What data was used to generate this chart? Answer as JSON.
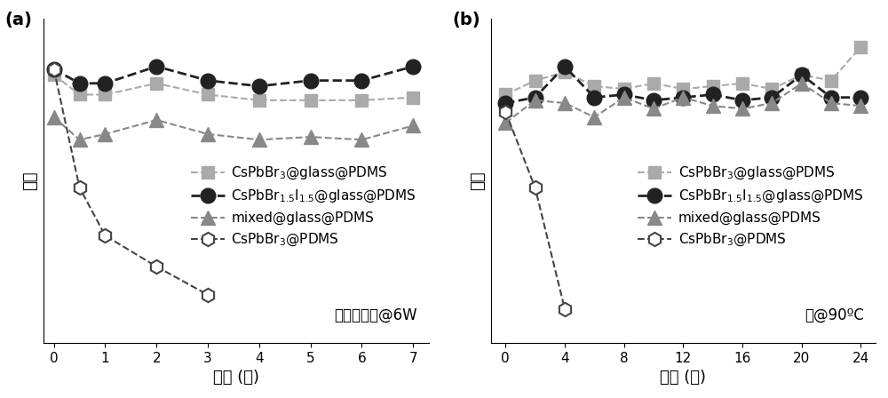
{
  "panel_a": {
    "title_label": "(a)",
    "xlabel": "时间 (天)",
    "ylabel": "强度",
    "annotation": "紫外光照射@6W",
    "xticks": [
      0,
      1,
      2,
      3,
      4,
      5,
      6,
      7
    ],
    "series": {
      "CsPbBr3_glass_PDMS": {
        "x": [
          0,
          0.5,
          1,
          2,
          3,
          4,
          5,
          6,
          7
        ],
        "y": [
          0.95,
          0.88,
          0.88,
          0.92,
          0.88,
          0.86,
          0.86,
          0.86,
          0.87
        ],
        "color": "#aaaaaa",
        "linestyle": "--",
        "marker": "s",
        "markersize": 10,
        "markerfacecolor": "#aaaaaa",
        "markeredgecolor": "#aaaaaa",
        "markeredgewidth": 1.0,
        "linewidth": 1.5,
        "label": "CsPbBr$_3$@glass@PDMS"
      },
      "CsPbBr15I15_glass_PDMS": {
        "x": [
          0,
          0.5,
          1,
          2,
          3,
          4,
          5,
          6,
          7
        ],
        "y": [
          0.97,
          0.92,
          0.92,
          0.98,
          0.93,
          0.91,
          0.93,
          0.93,
          0.98
        ],
        "color": "#222222",
        "linestyle": "--",
        "marker": "o",
        "markersize": 12,
        "markerfacecolor": "#222222",
        "markeredgecolor": "#222222",
        "markeredgewidth": 1.0,
        "linewidth": 2.0,
        "label": "CsPbBr$_{1.5}$I$_{1.5}$@glass@PDMS"
      },
      "mixed_glass_PDMS": {
        "x": [
          0,
          0.5,
          1,
          2,
          3,
          4,
          5,
          6,
          7
        ],
        "y": [
          0.8,
          0.72,
          0.74,
          0.79,
          0.74,
          0.72,
          0.73,
          0.72,
          0.77
        ],
        "color": "#888888",
        "linestyle": "--",
        "marker": "^",
        "markersize": 11,
        "markerfacecolor": "#888888",
        "markeredgecolor": "#888888",
        "markeredgewidth": 1.0,
        "linewidth": 1.5,
        "label": "mixed@glass@PDMS"
      },
      "CsPbBr3_PDMS": {
        "x": [
          0,
          0.5,
          1,
          2,
          3
        ],
        "y": [
          0.97,
          0.55,
          0.38,
          0.27,
          0.17
        ],
        "color": "#444444",
        "linestyle": "--",
        "marker": "h",
        "markersize": 11,
        "markerfacecolor": "white",
        "markeredgecolor": "#444444",
        "markeredgewidth": 1.5,
        "linewidth": 1.5,
        "label": "CsPbBr$_3$@PDMS"
      }
    },
    "ylim": [
      0,
      1.15
    ],
    "xlim": [
      -0.2,
      7.3
    ]
  },
  "panel_b": {
    "title_label": "(b)",
    "xlabel": "时间 (时)",
    "ylabel": "强度",
    "annotation": "水@90ºC",
    "xticks": [
      0,
      4,
      8,
      12,
      16,
      20,
      24
    ],
    "series": {
      "CsPbBr3_glass_PDMS": {
        "x": [
          0,
          2,
          4,
          6,
          8,
          10,
          12,
          14,
          16,
          18,
          20,
          22,
          24
        ],
        "y": [
          0.88,
          0.93,
          0.96,
          0.91,
          0.9,
          0.92,
          0.9,
          0.91,
          0.92,
          0.9,
          0.95,
          0.93,
          1.05
        ],
        "color": "#aaaaaa",
        "linestyle": "--",
        "marker": "s",
        "markersize": 10,
        "markerfacecolor": "#aaaaaa",
        "markeredgecolor": "#aaaaaa",
        "markeredgewidth": 1.0,
        "linewidth": 1.5,
        "label": "CsPbBr$_3$@glass@PDMS"
      },
      "CsPbBr15I15_glass_PDMS": {
        "x": [
          0,
          2,
          4,
          6,
          8,
          10,
          12,
          14,
          16,
          18,
          20,
          22,
          24
        ],
        "y": [
          0.85,
          0.87,
          0.98,
          0.87,
          0.88,
          0.86,
          0.87,
          0.88,
          0.86,
          0.87,
          0.95,
          0.87,
          0.87
        ],
        "color": "#222222",
        "linestyle": "--",
        "marker": "o",
        "markersize": 12,
        "markerfacecolor": "#222222",
        "markeredgecolor": "#222222",
        "markeredgewidth": 1.0,
        "linewidth": 2.0,
        "label": "CsPbBr$_{1.5}$I$_{1.5}$@glass@PDMS"
      },
      "mixed_glass_PDMS": {
        "x": [
          0,
          2,
          4,
          6,
          8,
          10,
          12,
          14,
          16,
          18,
          20,
          22,
          24
        ],
        "y": [
          0.78,
          0.86,
          0.85,
          0.8,
          0.87,
          0.83,
          0.87,
          0.84,
          0.83,
          0.85,
          0.92,
          0.85,
          0.84
        ],
        "color": "#888888",
        "linestyle": "--",
        "marker": "^",
        "markersize": 11,
        "markerfacecolor": "#888888",
        "markeredgecolor": "#888888",
        "markeredgewidth": 1.0,
        "linewidth": 1.5,
        "label": "mixed@glass@PDMS"
      },
      "CsPbBr3_PDMS": {
        "x": [
          0,
          2,
          4
        ],
        "y": [
          0.82,
          0.55,
          0.12
        ],
        "color": "#444444",
        "linestyle": "--",
        "marker": "h",
        "markersize": 11,
        "markerfacecolor": "white",
        "markeredgecolor": "#444444",
        "markeredgewidth": 1.5,
        "linewidth": 1.5,
        "label": "CsPbBr$_3$@PDMS"
      }
    },
    "ylim": [
      0,
      1.15
    ],
    "xlim": [
      -1,
      25
    ]
  },
  "series_order": [
    "CsPbBr3_glass_PDMS",
    "CsPbBr15I15_glass_PDMS",
    "mixed_glass_PDMS",
    "CsPbBr3_PDMS"
  ],
  "figsize": [
    10.0,
    4.48
  ],
  "dpi": 100,
  "background_color": "#ffffff",
  "font_size_label": 13,
  "font_size_tick": 11,
  "font_size_legend": 11,
  "font_size_annot": 12,
  "font_size_panel_label": 14
}
